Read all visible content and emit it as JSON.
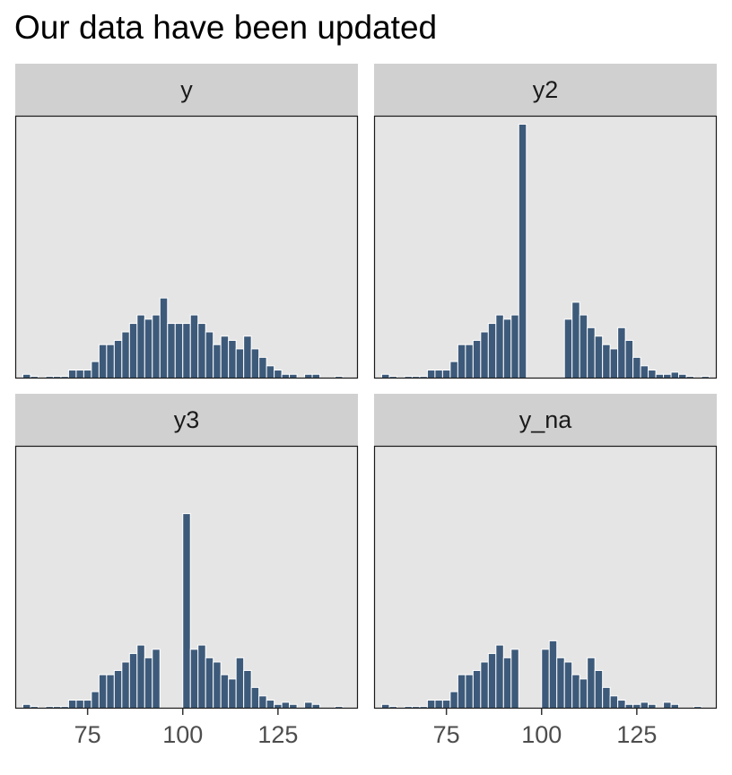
{
  "title": "Our data have been updated",
  "colors": {
    "bar_fill": "#3d5a7a",
    "bar_stroke": "#ffffff",
    "panel_bg": "#e5e5e5",
    "strip_bg": "#d0d0d0",
    "panel_border": "#1a1a1a",
    "tick_text": "#4d4d4d"
  },
  "chart_data": {
    "type": "bar",
    "subtype": "histogram",
    "layout": "facet-grid-2x2",
    "title": "Our data have been updated",
    "xlabel": "",
    "ylabel": "",
    "x_ticks": [
      75,
      100,
      125
    ],
    "xlim": [
      56,
      146
    ],
    "bin_width": 2,
    "bin_starts": [
      58,
      60,
      62,
      64,
      66,
      68,
      70,
      72,
      74,
      76,
      78,
      80,
      82,
      84,
      86,
      88,
      90,
      92,
      94,
      96,
      98,
      100,
      102,
      104,
      106,
      108,
      110,
      112,
      114,
      116,
      118,
      120,
      122,
      124,
      126,
      128,
      130,
      132,
      134,
      136,
      138,
      140,
      142
    ],
    "grid": false,
    "y_axis_shown": false,
    "facets": [
      {
        "name": "y",
        "values": [
          1,
          0.5,
          0,
          0.5,
          0.5,
          0.5,
          2,
          2,
          2,
          4,
          8,
          8,
          9,
          11,
          13,
          15,
          14,
          15,
          19,
          13,
          13,
          13,
          15,
          13,
          11,
          8,
          10,
          9,
          7,
          10,
          7,
          5,
          3,
          2,
          1,
          1,
          0,
          1,
          1,
          0,
          0,
          0.5,
          0
        ]
      },
      {
        "name": "y2",
        "values": [
          1,
          0.5,
          0,
          0.5,
          0.5,
          0.5,
          2,
          2,
          2,
          4,
          8,
          8,
          9,
          11,
          13,
          15,
          14,
          15,
          60,
          0,
          0,
          0,
          0,
          0,
          14,
          18,
          15,
          12,
          10,
          8,
          7,
          12,
          9,
          5,
          3,
          2,
          1,
          1,
          1.5,
          1,
          0.5,
          0,
          0.5
        ]
      },
      {
        "name": "y3",
        "values": [
          1,
          0.5,
          0,
          0.5,
          0.5,
          0.5,
          2,
          2,
          2,
          4,
          8,
          8,
          9,
          11,
          13,
          15,
          12,
          14,
          0,
          0,
          0,
          46,
          14,
          15,
          12,
          11,
          8,
          7,
          12,
          9,
          5,
          3,
          2,
          1,
          1.5,
          1,
          0,
          1.5,
          1,
          0,
          0,
          0.5,
          0
        ]
      },
      {
        "name": "y_na",
        "values": [
          1,
          0.5,
          0,
          0.5,
          0.5,
          0.5,
          2,
          2,
          2,
          4,
          8,
          8,
          9,
          11,
          13,
          15,
          12,
          14,
          0,
          0,
          0,
          14,
          16,
          12,
          11,
          8,
          7,
          12,
          9,
          5,
          3,
          2,
          1,
          1,
          1.5,
          1,
          0,
          1.5,
          1,
          0,
          0,
          0.5,
          0
        ]
      }
    ]
  }
}
